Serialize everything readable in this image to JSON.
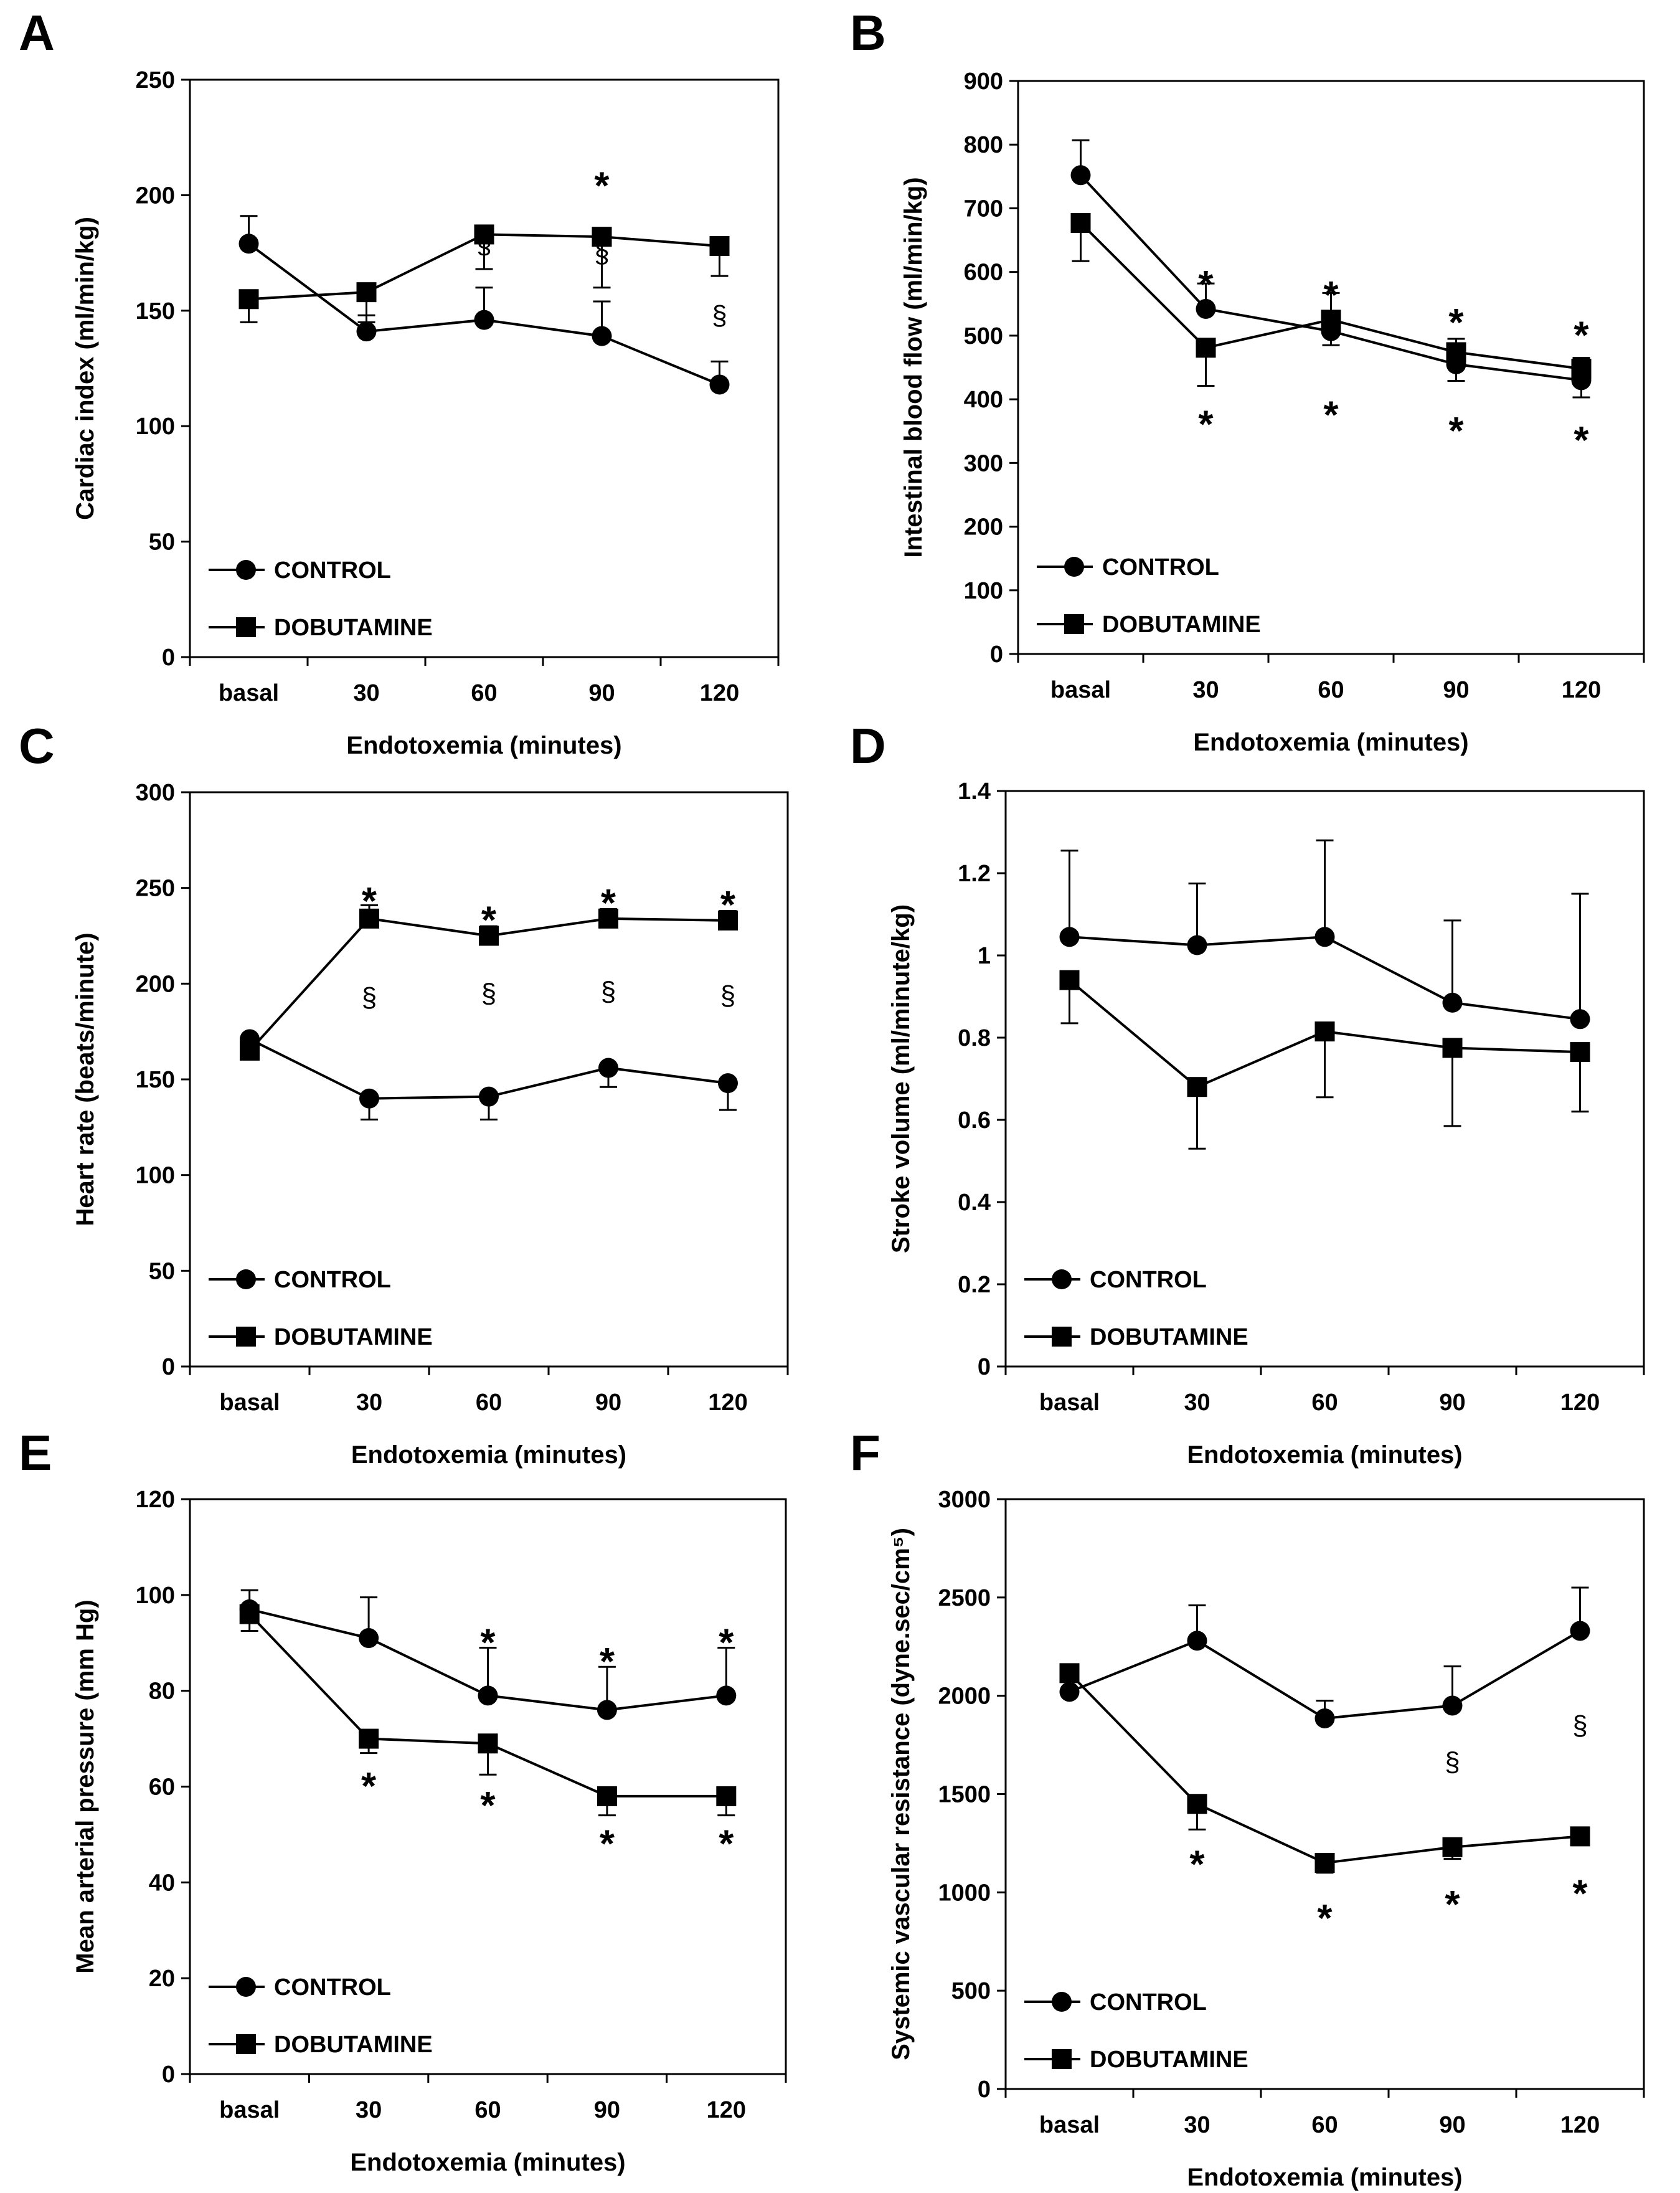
{
  "chart_data": [
    {
      "type": "line",
      "panel_label": "A",
      "xlabel": "Endotoxemia (minutes)",
      "ylabel": "Cardiac index (ml/min/kg)",
      "categories": [
        "basal",
        "30",
        "60",
        "90",
        "120"
      ],
      "ylim": [
        0,
        250
      ],
      "yticks": [
        "0",
        "50",
        "100",
        "150",
        "200",
        "250"
      ],
      "legend_position": "bottom-left",
      "series": [
        {
          "name": "CONTROL",
          "marker": "circle",
          "values": [
            179,
            141,
            146,
            139,
            118
          ],
          "error": [
            12,
            7,
            14,
            15,
            10
          ],
          "error_dir": "up"
        },
        {
          "name": "DOBUTAMINE",
          "marker": "square",
          "values": [
            155,
            158,
            183,
            182,
            178
          ],
          "error": [
            10,
            13,
            15,
            22,
            13
          ],
          "error_dir": "down"
        }
      ],
      "annotations": [
        {
          "symbol": "*",
          "category": "90",
          "y": 208
        },
        {
          "symbol": "§",
          "category": "60",
          "y": 179
        },
        {
          "symbol": "§",
          "category": "90",
          "y": 175
        },
        {
          "symbol": "§",
          "category": "120",
          "y": 148
        }
      ]
    },
    {
      "type": "line",
      "panel_label": "B",
      "xlabel": "Endotoxemia (minutes)",
      "ylabel": "Intestinal blood flow (ml/min/kg)",
      "categories": [
        "basal",
        "30",
        "60",
        "90",
        "120"
      ],
      "ylim": [
        0,
        900
      ],
      "yticks": [
        "0",
        "100",
        "200",
        "300",
        "400",
        "500",
        "600",
        "700",
        "800",
        "900"
      ],
      "legend_position": "bottom-left",
      "series": [
        {
          "name": "CONTROL",
          "marker": "circle",
          "values": [
            752,
            542,
            507,
            455,
            430
          ],
          "error": [
            55,
            40,
            60,
            40,
            35
          ],
          "error_dir": "up"
        },
        {
          "name": "DOBUTAMINE",
          "marker": "square",
          "values": [
            677,
            481,
            525,
            474,
            448
          ],
          "error": [
            60,
            60,
            40,
            45,
            45
          ],
          "error_dir": "down"
        }
      ],
      "annotations": [
        {
          "symbol": "*",
          "category": "30",
          "y": 595
        },
        {
          "symbol": "*",
          "category": "60",
          "y": 578
        },
        {
          "symbol": "*",
          "category": "90",
          "y": 535
        },
        {
          "symbol": "*",
          "category": "120",
          "y": 515
        },
        {
          "symbol": "*",
          "category": "30",
          "y": 375
        },
        {
          "symbol": "*",
          "category": "60",
          "y": 390
        },
        {
          "symbol": "*",
          "category": "90",
          "y": 365
        },
        {
          "symbol": "*",
          "category": "120",
          "y": 350
        }
      ]
    },
    {
      "type": "line",
      "panel_label": "C",
      "xlabel": "Endotoxemia (minutes)",
      "ylabel": "Heart rate (beats/minute)",
      "categories": [
        "basal",
        "30",
        "60",
        "90",
        "120"
      ],
      "ylim": [
        0,
        300
      ],
      "yticks": [
        "0",
        "50",
        "100",
        "150",
        "200",
        "250",
        "300"
      ],
      "legend_position": "bottom-left",
      "series": [
        {
          "name": "CONTROL",
          "marker": "circle",
          "values": [
            171,
            140,
            141,
            156,
            148
          ],
          "error": [
            5,
            11,
            12,
            10,
            14
          ],
          "error_dir": "down"
        },
        {
          "name": "DOBUTAMINE",
          "marker": "square",
          "values": [
            165,
            234,
            225,
            234,
            233
          ],
          "error": [
            5,
            7,
            5,
            5,
            5
          ],
          "error_dir": "up"
        }
      ],
      "annotations": [
        {
          "symbol": "*",
          "category": "30",
          "y": 248
        },
        {
          "symbol": "*",
          "category": "60",
          "y": 238
        },
        {
          "symbol": "*",
          "category": "90",
          "y": 247
        },
        {
          "symbol": "*",
          "category": "120",
          "y": 246
        },
        {
          "symbol": "§",
          "category": "30",
          "y": 193
        },
        {
          "symbol": "§",
          "category": "60",
          "y": 195
        },
        {
          "symbol": "§",
          "category": "90",
          "y": 196
        },
        {
          "symbol": "§",
          "category": "120",
          "y": 194
        }
      ]
    },
    {
      "type": "line",
      "panel_label": "D",
      "xlabel": "Endotoxemia (minutes)",
      "ylabel": "Stroke volume (ml/minute/kg)",
      "categories": [
        "basal",
        "30",
        "60",
        "90",
        "120"
      ],
      "ylim": [
        0,
        1.4
      ],
      "yticks": [
        "0",
        "0.2",
        "0.4",
        "0.6",
        "0.8",
        "1",
        "1.2",
        "1.4"
      ],
      "legend_position": "bottom-left",
      "series": [
        {
          "name": "CONTROL",
          "marker": "circle",
          "values": [
            1.045,
            1.025,
            1.045,
            0.885,
            0.845
          ],
          "error": [
            0.21,
            0.15,
            0.235,
            0.2,
            0.305
          ],
          "error_dir": "up"
        },
        {
          "name": "DOBUTAMINE",
          "marker": "square",
          "values": [
            0.94,
            0.68,
            0.815,
            0.775,
            0.765
          ],
          "error": [
            0.105,
            0.15,
            0.16,
            0.19,
            0.145
          ],
          "error_dir": "down"
        }
      ],
      "annotations": []
    },
    {
      "type": "line",
      "panel_label": "E",
      "xlabel": "Endotoxemia (minutes)",
      "ylabel": "Mean arterial pressure (mm Hg)",
      "categories": [
        "basal",
        "30",
        "60",
        "90",
        "120"
      ],
      "ylim": [
        0,
        120
      ],
      "yticks": [
        "0",
        "20",
        "40",
        "60",
        "80",
        "100",
        "120"
      ],
      "legend_position": "bottom-left",
      "series": [
        {
          "name": "CONTROL",
          "marker": "circle",
          "values": [
            97,
            91,
            79,
            76,
            79
          ],
          "error": [
            4,
            8.5,
            10,
            9,
            10
          ],
          "error_dir": "up"
        },
        {
          "name": "DOBUTAMINE",
          "marker": "square",
          "values": [
            96,
            70,
            69,
            58,
            58
          ],
          "error": [
            3.5,
            3,
            6.5,
            4,
            4
          ],
          "error_dir": "down"
        }
      ],
      "annotations": [
        {
          "symbol": "*",
          "category": "60",
          "y": 92
        },
        {
          "symbol": "*",
          "category": "90",
          "y": 88
        },
        {
          "symbol": "*",
          "category": "120",
          "y": 92
        },
        {
          "symbol": "*",
          "category": "30",
          "y": 62
        },
        {
          "symbol": "*",
          "category": "60",
          "y": 58
        },
        {
          "symbol": "*",
          "category": "90",
          "y": 50
        },
        {
          "symbol": "*",
          "category": "120",
          "y": 50
        }
      ]
    },
    {
      "type": "line",
      "panel_label": "F",
      "xlabel": "Endotoxemia (minutes)",
      "ylabel": "Systemic vascular resistance (dyne.sec/cm⁵)",
      "categories": [
        "basal",
        "30",
        "60",
        "90",
        "120"
      ],
      "ylim": [
        0,
        3000
      ],
      "yticks": [
        "0",
        "500",
        "1000",
        "1500",
        "2000",
        "2500",
        "3000"
      ],
      "legend_position": "bottom-left",
      "series": [
        {
          "name": "CONTROL",
          "marker": "circle",
          "values": [
            2020,
            2280,
            1885,
            1950,
            2330
          ],
          "error": [
            90,
            180,
            90,
            200,
            220
          ],
          "error_dir": "up"
        },
        {
          "name": "DOBUTAMINE",
          "marker": "square",
          "values": [
            2115,
            1450,
            1150,
            1230,
            1285
          ],
          "error": [
            90,
            130,
            50,
            60,
            45
          ],
          "error_dir": "down"
        }
      ],
      "annotations": [
        {
          "symbol": "§",
          "category": "90",
          "y": 1665
        },
        {
          "symbol": "§",
          "category": "120",
          "y": 1850
        },
        {
          "symbol": "*",
          "category": "30",
          "y": 1190
        },
        {
          "symbol": "*",
          "category": "60",
          "y": 915
        },
        {
          "symbol": "*",
          "category": "90",
          "y": 985
        },
        {
          "symbol": "*",
          "category": "120",
          "y": 1040
        }
      ]
    }
  ]
}
